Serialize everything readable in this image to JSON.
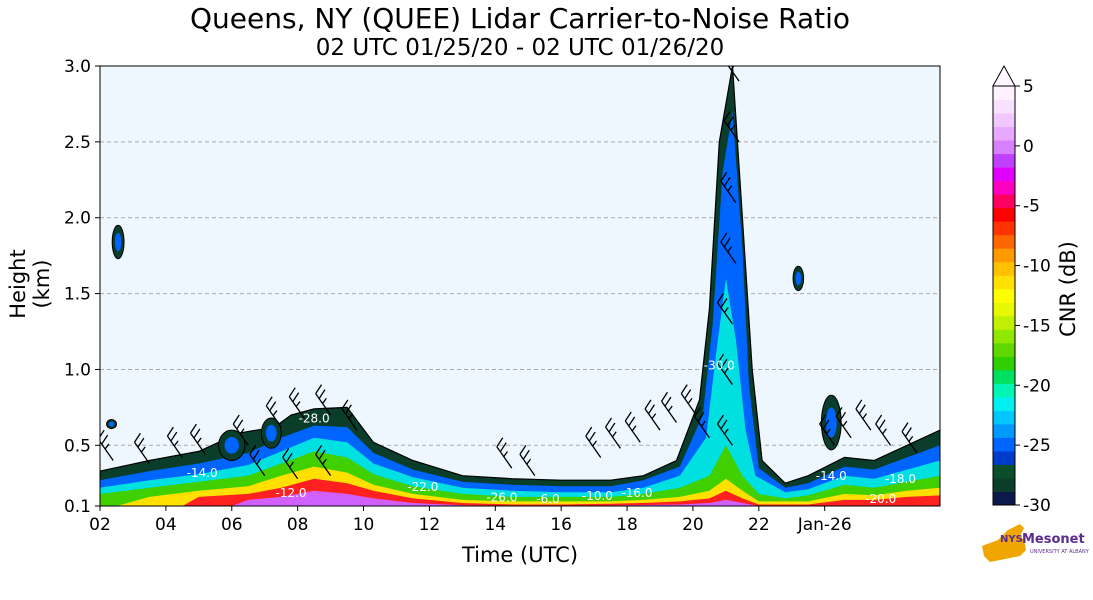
{
  "chart_data": {
    "type": "heatmap",
    "title": "Queens, NY (QUEE) Lidar Carrier-to-Noise Ratio",
    "subtitle": "02 UTC 01/25/20 - 02 UTC 01/26/20",
    "xlabel": "Time (UTC)",
    "ylabel": "Height (km)",
    "x_ticks": [
      "02",
      "04",
      "06",
      "08",
      "10",
      "12",
      "14",
      "16",
      "18",
      "20",
      "22",
      "Jan-26"
    ],
    "x_tick_hours": [
      2,
      4,
      6,
      8,
      10,
      12,
      14,
      16,
      18,
      20,
      22,
      24
    ],
    "xlim": [
      2,
      27.5
    ],
    "y_ticks": [
      "0.1",
      "0.5",
      "1.0",
      "1.5",
      "2.0",
      "2.5",
      "3.0"
    ],
    "y_tick_values": [
      0.1,
      0.5,
      1.0,
      1.5,
      2.0,
      2.5,
      3.0
    ],
    "ylim": [
      0.1,
      3.0
    ],
    "grid": "horizontal dashed",
    "colorbar": {
      "label": "CNR (dB)",
      "ticks": [
        "5",
        "0",
        "-5",
        "-10",
        "-15",
        "-20",
        "-25",
        "-30"
      ],
      "tick_values": [
        5,
        0,
        -5,
        -10,
        -15,
        -20,
        -25,
        -30
      ],
      "range": [
        -30,
        5
      ],
      "colors": [
        "#0b1a4a",
        "#0b3d2b",
        "#0a4f2a",
        "#003ccc",
        "#0064ff",
        "#009aff",
        "#00c8ff",
        "#00f0f0",
        "#00f5b4",
        "#00e060",
        "#30d000",
        "#60d800",
        "#90e800",
        "#c0f000",
        "#e8f800",
        "#ffff00",
        "#ffe000",
        "#ffc000",
        "#ff9900",
        "#ff6600",
        "#ff3300",
        "#ff0000",
        "#ff0060",
        "#ff00c0",
        "#e000ff",
        "#c040ff",
        "#d880ff",
        "#e8a8ff",
        "#f0c8ff",
        "#f8e0ff",
        "#fff0ff"
      ]
    },
    "contour_labels": [
      "-14.0",
      "-12.0",
      "-28.0",
      "-22.0",
      "-26.0",
      "-6.0",
      "-10.0",
      "-16.0",
      "-30.0",
      "-14.0",
      "-18.0",
      "-20.0"
    ],
    "logo": "NYS Mesonet"
  },
  "logo": {
    "nys": "NYS",
    "text": "Mesonet",
    "sub": "UNIVERSITY AT ALBANY"
  },
  "colors": {
    "plot_background": "#eef7fe",
    "grid": "#aaaaaa"
  }
}
